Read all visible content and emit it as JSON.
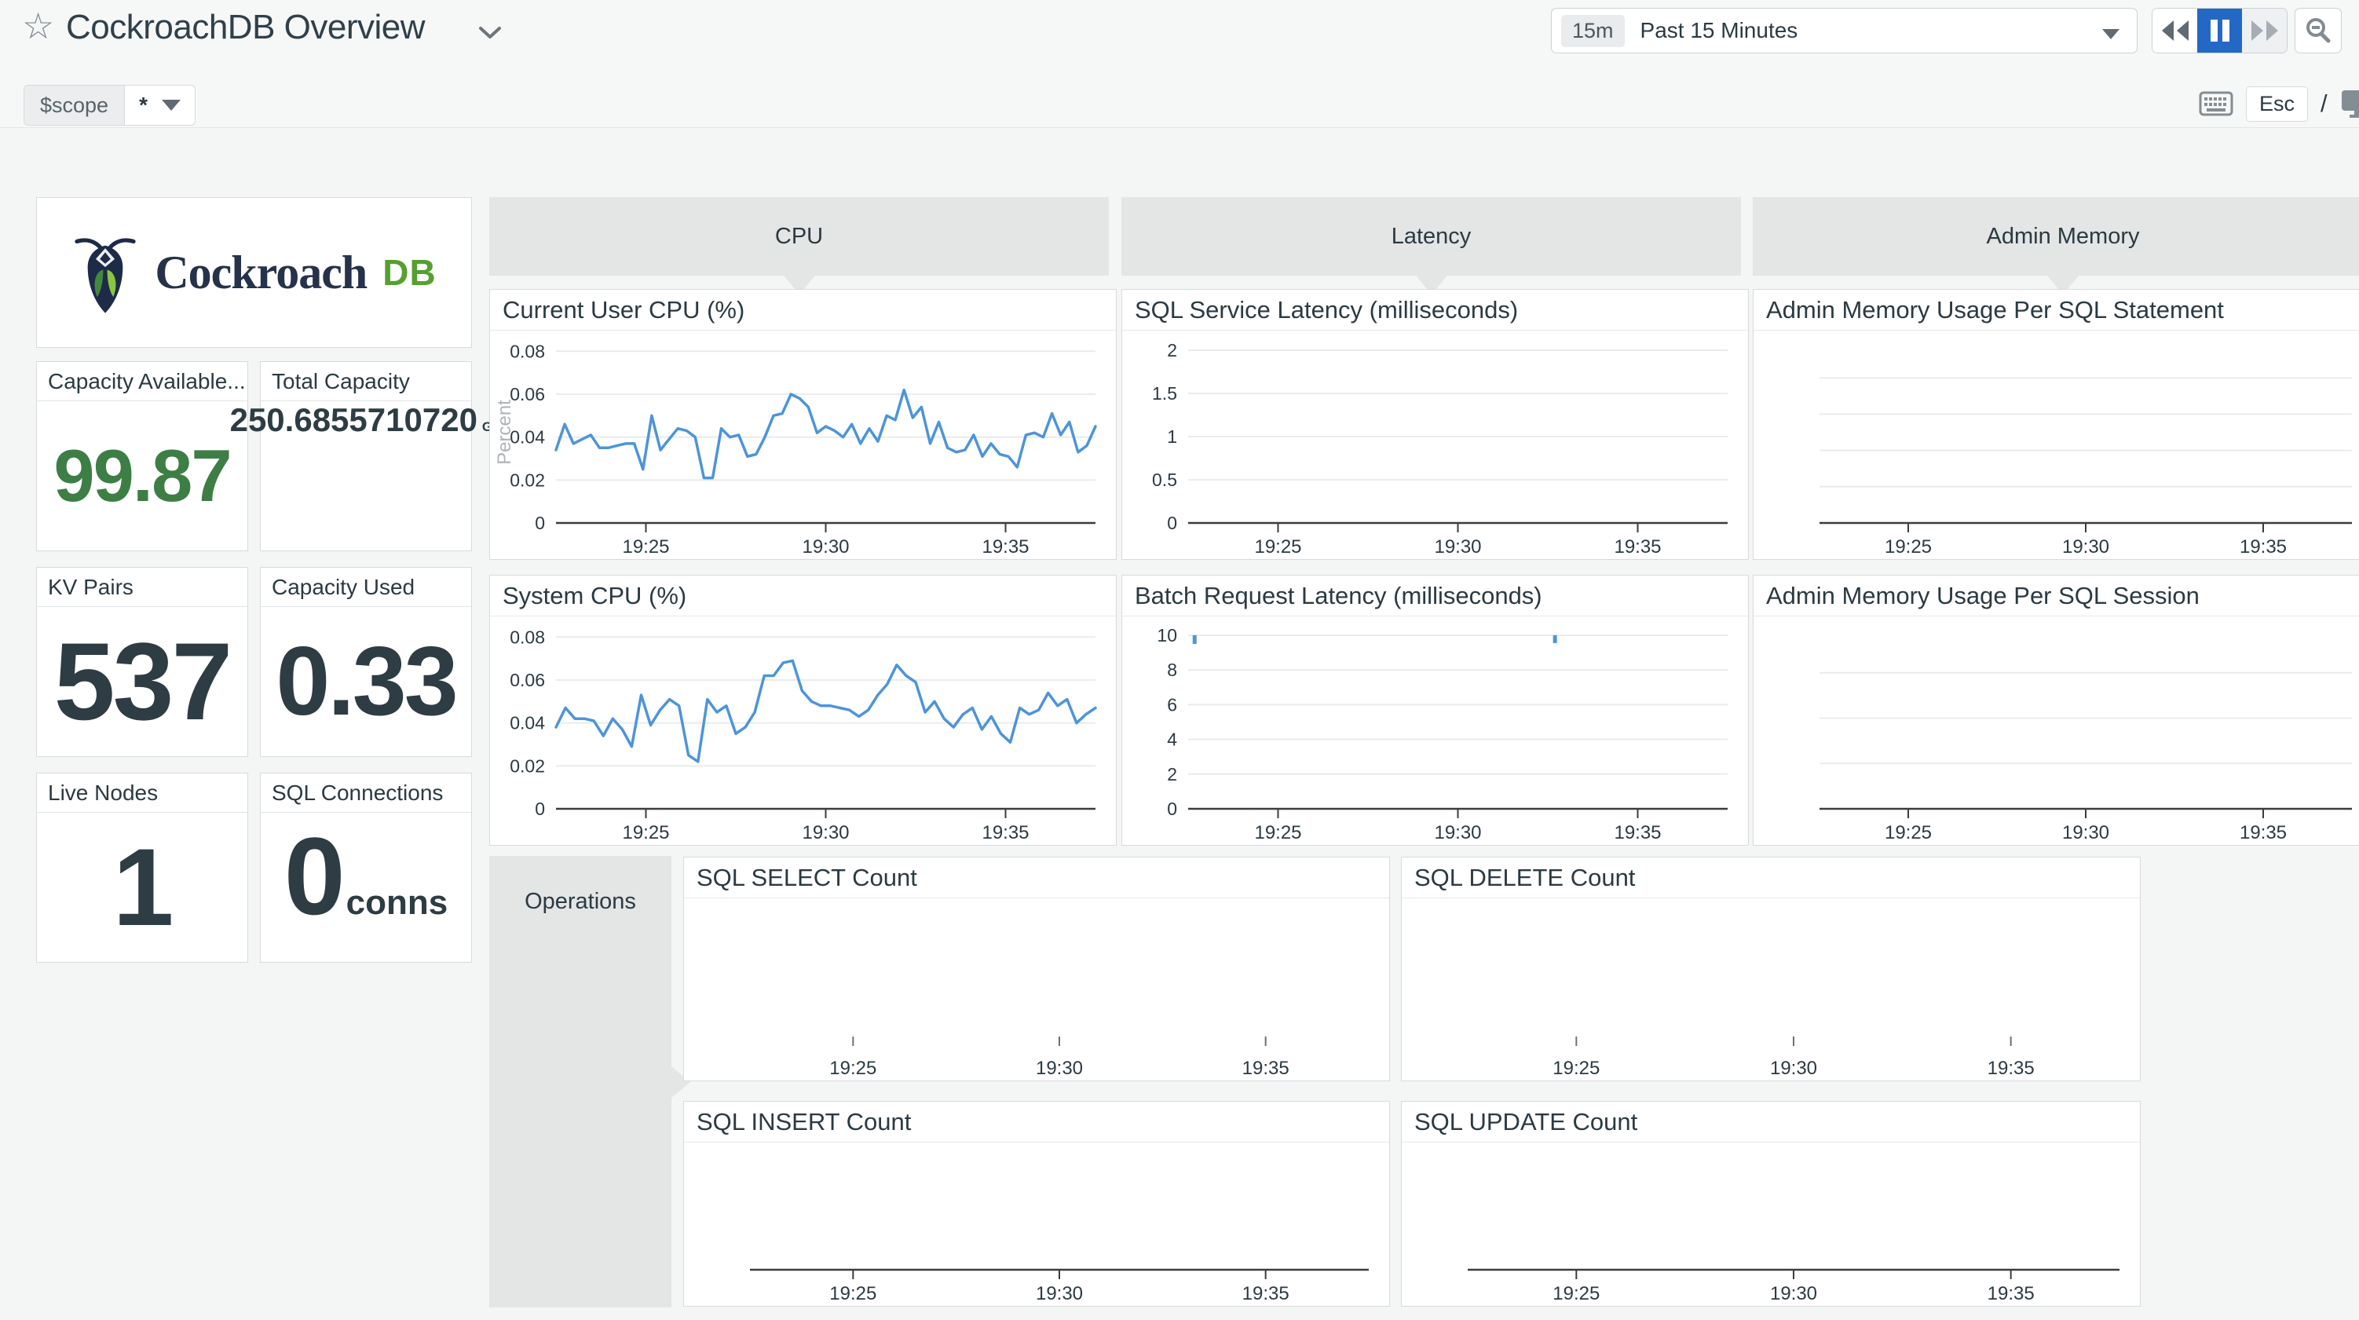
{
  "header": {
    "title": "CockroachDB Overview",
    "time": {
      "badge": "15m",
      "label": "Past 15 Minutes"
    },
    "esc_hint": "Esc",
    "slash_hint": "/"
  },
  "scope": {
    "label": "$scope",
    "value": "*"
  },
  "logo": {
    "brand": "Cockroach",
    "suffix": "DB"
  },
  "groups": {
    "cpu": "CPU",
    "latency": "Latency",
    "admin_memory": "Admin Memory",
    "operations": "Operations"
  },
  "stats": [
    {
      "id": "capacity-available",
      "title": "Capacity Available...",
      "value": "99.87"
    },
    {
      "id": "total-capacity",
      "title": "Total Capacity",
      "value": "250.6855710720",
      "unit": "GB"
    },
    {
      "id": "kv-pairs",
      "title": "KV Pairs",
      "value": "537"
    },
    {
      "id": "capacity-used",
      "title": "Capacity Used",
      "value": "0.33"
    },
    {
      "id": "live-nodes",
      "title": "Live Nodes",
      "value": "1"
    },
    {
      "id": "sql-connections",
      "title": "SQL Connections",
      "value": "0",
      "unit": "conns"
    }
  ],
  "colors": {
    "line_blue": "#4d94d9",
    "stat_green": "#3d7e45",
    "pause_blue": "#2368c4"
  },
  "chart_data": [
    {
      "type": "line",
      "title": "Current User CPU (%)",
      "ylabel": "Percent",
      "yticks": [
        "0",
        "0.02",
        "0.04",
        "0.06",
        "0.08"
      ],
      "ymax": 0.0845,
      "axis_line": true,
      "xticks": [
        "19:25",
        "19:30",
        "19:35"
      ],
      "x_range": "19:22.5 - 19:37.5",
      "grid": true,
      "series": [
        0.034,
        0.046,
        0.037,
        0.039,
        0.041,
        0.035,
        0.035,
        0.036,
        0.037,
        0.037,
        0.025,
        0.05,
        0.034,
        0.039,
        0.044,
        0.043,
        0.04,
        0.021,
        0.021,
        0.044,
        0.04,
        0.041,
        0.031,
        0.032,
        0.04,
        0.05,
        0.051,
        0.06,
        0.058,
        0.054,
        0.042,
        0.045,
        0.043,
        0.04,
        0.046,
        0.037,
        0.044,
        0.038,
        0.05,
        0.048,
        0.062,
        0.049,
        0.054,
        0.037,
        0.047,
        0.035,
        0.033,
        0.034,
        0.041,
        0.031,
        0.037,
        0.032,
        0.031,
        0.026,
        0.041,
        0.042,
        0.04,
        0.051,
        0.041,
        0.047,
        0.033,
        0.036,
        0.045
      ]
    },
    {
      "type": "line",
      "title": "System CPU (%)",
      "yticks": [
        "0",
        "0.02",
        "0.04",
        "0.06",
        "0.08"
      ],
      "ymax": 0.0845,
      "axis_line": true,
      "xticks": [
        "19:25",
        "19:30",
        "19:35"
      ],
      "grid": true,
      "series": [
        0.038,
        0.047,
        0.042,
        0.042,
        0.041,
        0.034,
        0.042,
        0.037,
        0.029,
        0.053,
        0.039,
        0.046,
        0.051,
        0.048,
        0.025,
        0.022,
        0.051,
        0.045,
        0.048,
        0.035,
        0.038,
        0.045,
        0.062,
        0.062,
        0.068,
        0.069,
        0.055,
        0.05,
        0.048,
        0.048,
        0.047,
        0.046,
        0.043,
        0.046,
        0.053,
        0.058,
        0.067,
        0.062,
        0.059,
        0.045,
        0.05,
        0.042,
        0.038,
        0.044,
        0.047,
        0.037,
        0.043,
        0.035,
        0.031,
        0.047,
        0.044,
        0.046,
        0.054,
        0.048,
        0.051,
        0.04,
        0.044,
        0.047
      ]
    },
    {
      "type": "line",
      "title": "SQL Service Latency (milliseconds)",
      "yticks": [
        "0",
        "0.5",
        "1",
        "1.5",
        "2"
      ],
      "ymax": 2.1,
      "axis_line": true,
      "xticks": [
        "19:25",
        "19:30",
        "19:35"
      ],
      "grid": true,
      "series": []
    },
    {
      "type": "line",
      "title": "Batch Request Latency (milliseconds)",
      "yticks": [
        "0",
        "2",
        "4",
        "6",
        "8",
        "10"
      ],
      "ymax": 10.45,
      "axis_line": true,
      "xticks": [
        "19:25",
        "19:30",
        "19:35"
      ],
      "grid": true,
      "series": [],
      "markers": [
        {
          "x": 0.012,
          "y_top": 10,
          "y_bottom": 9.5
        },
        {
          "x": 0.68,
          "y_top": 10,
          "y_bottom": 9.55
        }
      ]
    },
    {
      "type": "line",
      "title": "Admin Memory Usage Per SQL Statement",
      "yticks": [],
      "gridline_count": 4,
      "axis_line": true,
      "xticks": [
        "19:25",
        "19:30",
        "19:35"
      ],
      "series": []
    },
    {
      "type": "line",
      "title": "Admin Memory Usage Per SQL Session",
      "yticks": [],
      "gridline_count": 3,
      "axis_line": true,
      "xticks": [
        "19:25",
        "19:30",
        "19:35"
      ],
      "series": []
    },
    {
      "type": "line",
      "title": "SQL SELECT Count",
      "yticks": [],
      "axis_line": false,
      "xticks": [
        "19:25",
        "19:30",
        "19:35"
      ],
      "series": []
    },
    {
      "type": "line",
      "title": "SQL DELETE Count",
      "yticks": [],
      "axis_line": false,
      "xticks": [
        "19:25",
        "19:30",
        "19:35"
      ],
      "series": []
    },
    {
      "type": "line",
      "title": "SQL INSERT Count",
      "yticks": [],
      "axis_line": true,
      "xticks": [
        "19:25",
        "19:30",
        "19:35"
      ],
      "series": []
    },
    {
      "type": "line",
      "title": "SQL UPDATE Count",
      "yticks": [],
      "axis_line": true,
      "xticks": [
        "19:25",
        "19:30",
        "19:35"
      ],
      "series": []
    }
  ]
}
